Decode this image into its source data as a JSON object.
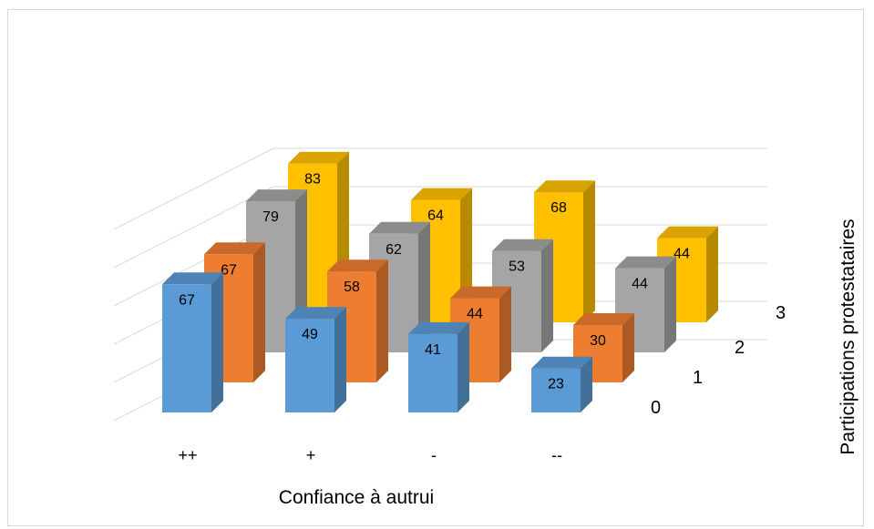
{
  "chart_data": {
    "type": "bar",
    "variant": "3d-column",
    "categories": [
      "++",
      "+",
      "-",
      "--"
    ],
    "series": [
      {
        "name": "0",
        "values": [
          67,
          49,
          41,
          23
        ],
        "color": "#5b9bd5"
      },
      {
        "name": "1",
        "values": [
          67,
          58,
          44,
          30
        ],
        "color": "#ed7d31"
      },
      {
        "name": "2",
        "values": [
          79,
          62,
          53,
          44
        ],
        "color": "#a5a5a5"
      },
      {
        "name": "3",
        "values": [
          83,
          64,
          68,
          44
        ],
        "color": "#ffc000"
      }
    ],
    "xlabel": "Confiance à autrui",
    "zlabel": "Participations protestataires",
    "ylim": [
      0,
      100
    ],
    "grid": true,
    "legend": "none"
  }
}
